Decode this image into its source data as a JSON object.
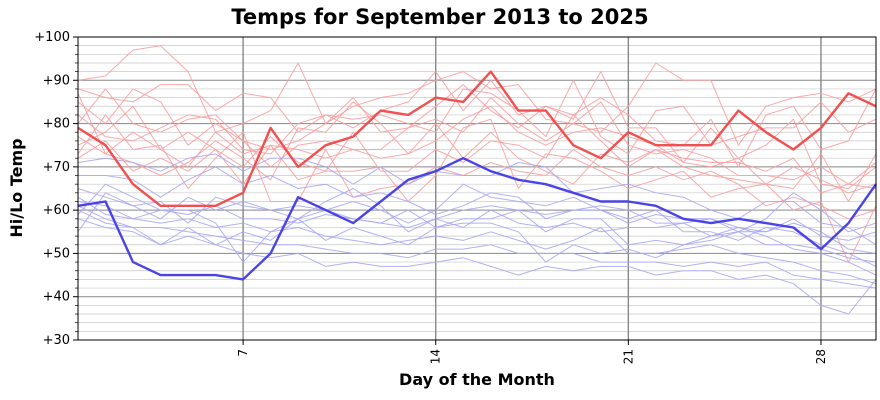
{
  "chart_data": {
    "type": "line",
    "title": "Temps for September 2013 to 2025",
    "xlabel": "Day of the Month",
    "ylabel": "Hi/Lo Temp",
    "xlim": [
      1,
      30
    ],
    "ylim": [
      30,
      100
    ],
    "x_ticks": [
      7,
      14,
      21,
      28
    ],
    "y_ticks": [
      30,
      40,
      50,
      60,
      70,
      80,
      90,
      100
    ],
    "y_tick_labels": [
      "+30",
      "+40",
      "+50",
      "+60",
      "+70",
      "+80",
      "+90",
      "+100"
    ],
    "grid": true,
    "legend": "none",
    "colors": {
      "highlight_high": "#f05050",
      "highlight_low": "#4a44e6",
      "background_high": "#f7a0a0",
      "background_low": "#a8a8f2",
      "major_grid": "#888888",
      "minor_grid": "#c8c8c8"
    },
    "x": [
      1,
      2,
      3,
      4,
      5,
      6,
      7,
      8,
      9,
      10,
      11,
      12,
      13,
      14,
      15,
      16,
      17,
      18,
      19,
      20,
      21,
      22,
      23,
      24,
      25,
      26,
      27,
      28,
      29,
      30
    ],
    "series": [
      {
        "role": "highlight-high",
        "values": [
          79,
          75,
          66,
          61,
          61,
          61,
          64,
          79,
          70,
          75,
          77,
          83,
          82,
          86,
          85,
          92,
          83,
          83,
          75,
          72,
          78,
          75,
          75,
          75,
          83,
          78,
          74,
          79,
          87,
          84
        ]
      },
      {
        "role": "highlight-low",
        "values": [
          61,
          62,
          48,
          45,
          45,
          45,
          44,
          50,
          63,
          60,
          57,
          62,
          67,
          69,
          72,
          69,
          67,
          66,
          64,
          62,
          62,
          61,
          58,
          57,
          58,
          57,
          56,
          51,
          57,
          66
        ]
      },
      {
        "role": "background-high",
        "values": [
          90,
          91,
          97,
          98,
          92,
          78,
          80,
          83,
          94,
          80,
          84,
          86,
          87,
          90,
          92,
          88,
          89,
          81,
          80,
          78,
          84,
          94,
          90,
          90,
          75,
          84,
          86,
          87,
          85,
          88
        ]
      },
      {
        "role": "background-high",
        "values": [
          88,
          86,
          85,
          89,
          89,
          83,
          87,
          86,
          78,
          82,
          79,
          83,
          85,
          92,
          83,
          90,
          82,
          84,
          82,
          86,
          82,
          76,
          75,
          81,
          70,
          82,
          84,
          74,
          76,
          88
        ]
      },
      {
        "role": "background-high",
        "values": [
          85,
          80,
          88,
          85,
          75,
          80,
          76,
          74,
          76,
          80,
          86,
          78,
          79,
          84,
          89,
          83,
          79,
          84,
          81,
          92,
          79,
          79,
          71,
          79,
          72,
          75,
          81,
          66,
          65,
          70
        ]
      },
      {
        "role": "background-high",
        "values": [
          82,
          77,
          76,
          79,
          82,
          81,
          74,
          73,
          80,
          82,
          81,
          82,
          80,
          78,
          88,
          87,
          83,
          77,
          90,
          77,
          73,
          83,
          84,
          75,
          77,
          79,
          79,
          85,
          78,
          81
        ]
      },
      {
        "role": "background-high",
        "values": [
          80,
          88,
          80,
          78,
          81,
          82,
          76,
          70,
          75,
          76,
          74,
          74,
          79,
          81,
          78,
          86,
          80,
          76,
          80,
          85,
          75,
          73,
          74,
          72,
          68,
          68,
          67,
          70,
          66,
          71
        ]
      },
      {
        "role": "background-high",
        "values": [
          77,
          73,
          78,
          74,
          78,
          74,
          66,
          75,
          74,
          72,
          74,
          72,
          73,
          76,
          81,
          84,
          78,
          75,
          78,
          79,
          77,
          75,
          71,
          70,
          72,
          66,
          65,
          73,
          62,
          73
        ]
      },
      {
        "role": "background-high",
        "values": [
          75,
          78,
          84,
          74,
          70,
          78,
          73,
          75,
          67,
          69,
          78,
          69,
          69,
          74,
          71,
          76,
          75,
          72,
          82,
          76,
          70,
          74,
          72,
          71,
          71,
          69,
          72,
          64,
          66,
          65
        ]
      },
      {
        "role": "background-high",
        "values": [
          73,
          82,
          74,
          75,
          65,
          72,
          78,
          62,
          62,
          74,
          63,
          65,
          66,
          70,
          68,
          71,
          69,
          68,
          74,
          70,
          68,
          70,
          67,
          69,
          66,
          61,
          63,
          61,
          58,
          60
        ]
      },
      {
        "role": "background-high",
        "values": [
          72,
          76,
          69,
          72,
          69,
          74,
          70,
          77,
          71,
          69,
          69,
          70,
          62,
          68,
          79,
          81,
          65,
          73,
          72,
          69,
          65,
          67,
          69,
          63,
          65,
          66,
          60,
          62,
          48,
          61
        ]
      },
      {
        "role": "background-high",
        "values": [
          87,
          73,
          71,
          68,
          71,
          76,
          72,
          67,
          79,
          78,
          85,
          80,
          73,
          80,
          72,
          78,
          72,
          69,
          66,
          73,
          71,
          74,
          70,
          68,
          67,
          66,
          70,
          67,
          64,
          66
        ]
      },
      {
        "role": "background-low",
        "values": [
          71,
          72,
          71,
          69,
          72,
          73,
          69,
          72,
          72,
          70,
          66,
          70,
          66,
          69,
          68,
          68,
          71,
          70,
          64,
          65,
          66,
          64,
          63,
          60,
          58,
          62,
          62,
          57,
          56,
          52
        ]
      },
      {
        "role": "background-low",
        "values": [
          68,
          68,
          67,
          63,
          67,
          70,
          66,
          68,
          65,
          66,
          63,
          64,
          62,
          59,
          61,
          64,
          63,
          58,
          60,
          60,
          58,
          60,
          55,
          55,
          53,
          56,
          55,
          52,
          50,
          47
        ]
      },
      {
        "role": "background-low",
        "values": [
          65,
          63,
          61,
          58,
          63,
          60,
          62,
          60,
          58,
          60,
          58,
          57,
          56,
          58,
          56,
          60,
          57,
          56,
          57,
          55,
          56,
          56,
          57,
          54,
          56,
          54,
          51,
          50,
          48,
          45
        ]
      },
      {
        "role": "background-low",
        "values": [
          63,
          59,
          58,
          57,
          58,
          56,
          57,
          55,
          56,
          54,
          53,
          52,
          53,
          54,
          53,
          55,
          53,
          51,
          53,
          56,
          50,
          50,
          51,
          52,
          50,
          49,
          48,
          46,
          45,
          43
        ]
      },
      {
        "role": "background-low",
        "values": [
          60,
          57,
          56,
          56,
          55,
          54,
          53,
          52,
          52,
          51,
          50,
          50,
          49,
          51,
          51,
          52,
          50,
          50,
          50,
          48,
          48,
          48,
          47,
          48,
          47,
          48,
          45,
          44,
          43,
          42
        ]
      },
      {
        "role": "background-low",
        "values": [
          58,
          56,
          55,
          52,
          54,
          52,
          50,
          49,
          50,
          47,
          48,
          47,
          47,
          48,
          49,
          47,
          45,
          47,
          46,
          47,
          47,
          45,
          46,
          46,
          44,
          45,
          43,
          38,
          36,
          44
        ]
      },
      {
        "role": "background-low",
        "values": [
          55,
          64,
          61,
          62,
          57,
          63,
          61,
          60,
          61,
          60,
          62,
          60,
          57,
          60,
          66,
          63,
          62,
          61,
          63,
          60,
          57,
          59,
          58,
          58,
          55,
          55,
          57,
          55,
          51,
          50
        ]
      },
      {
        "role": "background-low",
        "values": [
          62,
          61,
          58,
          60,
          59,
          61,
          58,
          58,
          57,
          59,
          58,
          57,
          60,
          56,
          58,
          58,
          60,
          59,
          60,
          61,
          60,
          57,
          57,
          58,
          56,
          55,
          58,
          54,
          53,
          55
        ]
      },
      {
        "role": "background-low",
        "values": [
          61,
          58,
          56,
          52,
          56,
          52,
          55,
          53,
          58,
          62,
          65,
          61,
          55,
          58,
          60,
          61,
          60,
          55,
          58,
          58,
          52,
          53,
          52,
          53,
          55,
          52,
          52,
          51,
          49,
          48
        ]
      },
      {
        "role": "background-low",
        "values": [
          59,
          66,
          63,
          60,
          60,
          57,
          48,
          55,
          58,
          53,
          56,
          54,
          52,
          56,
          57,
          57,
          55,
          48,
          52,
          50,
          51,
          49,
          52,
          54,
          55,
          58,
          64,
          60,
          55,
          57
        ]
      }
    ]
  }
}
